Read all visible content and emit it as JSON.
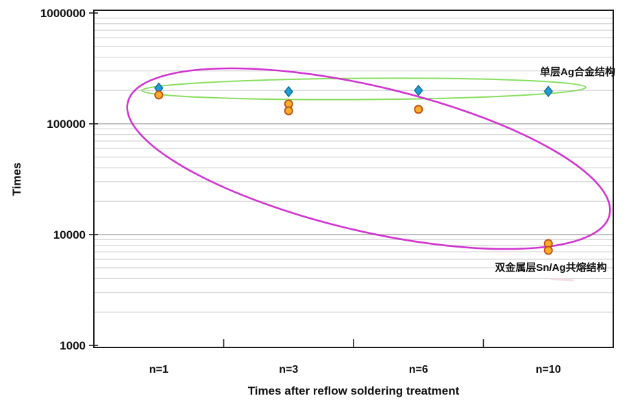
{
  "page": {
    "background": "#ffffff"
  },
  "chart_data": {
    "type": "scatter",
    "title": "",
    "xlabel": "Times after reflow soldering treatment",
    "ylabel": "Times",
    "categories": [
      "n=1",
      "n=3",
      "n=6",
      "n=10"
    ],
    "y_scale": "log",
    "ylim": [
      1000,
      1000000
    ],
    "y_ticks": [
      1000000,
      100000,
      10000,
      1000
    ],
    "grid": "horizontal log minor gridlines on, vertical off",
    "legend_position": "none (labels annotated inside plot)",
    "series": [
      {
        "name": "单层Ag合金结构",
        "marker": "diamond",
        "fill": "#1F9FD0",
        "stroke": "#16699F",
        "points": [
          {
            "category": "n=1",
            "value": 210000
          },
          {
            "category": "n=3",
            "value": 195000
          },
          {
            "category": "n=6",
            "value": 200000
          },
          {
            "category": "n=10",
            "value": 196000
          }
        ]
      },
      {
        "name": "双金属层Sn/Ag共熔结构",
        "marker": "circle",
        "fill": "#FBAE2B",
        "stroke": "#BE4F17",
        "points": [
          {
            "category": "n=1",
            "value": 182000
          },
          {
            "category": "n=3",
            "value": 151000
          },
          {
            "category": "n=3",
            "value": 131000
          },
          {
            "category": "n=6",
            "value": 135000
          },
          {
            "category": "n=10",
            "value": 8300
          },
          {
            "category": "n=10",
            "value": 7200
          }
        ]
      }
    ],
    "annotations": {
      "single_layer_label": {
        "text": "单层Ag合金结构",
        "color": "#000000"
      },
      "bilayer_label": {
        "text": "双金属层Sn/Ag共熔结构",
        "color": "#000000"
      },
      "ellipses": [
        {
          "group": "单层Ag合金结构",
          "color": "#7EDB4F",
          "cx": 531,
          "cy": 130,
          "rx": 324,
          "ry": 15.5,
          "rotate": -0.4,
          "stroke_width": 2
        },
        {
          "group": "双金属层Sn/Ag共熔结构",
          "color": "#CE24CE",
          "cx": 538,
          "cy": 232,
          "rx": 361,
          "ry": 106,
          "rotate": 13.2,
          "stroke_width": 2.6
        }
      ]
    },
    "colors": {
      "frame": "#1a1a1a",
      "major_grid": "#9a9a9a",
      "minor_grid": "#cbcbcb",
      "smudge": "#f2c9dc"
    }
  }
}
